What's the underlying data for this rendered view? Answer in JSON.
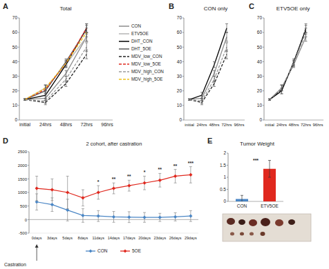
{
  "chart_data": [
    {
      "type": "line",
      "panel": "A",
      "title": "Total",
      "categories": [
        "initial",
        "24hrs",
        "48hrs",
        "72hrs",
        "96hrs"
      ],
      "ylim": [
        0,
        70
      ],
      "yticks": [
        0,
        10,
        20,
        30,
        40,
        50,
        60,
        70
      ],
      "grid": false,
      "legend": "right",
      "series": [
        {
          "name": "CON",
          "color": "#8c8c8c",
          "line_style": "solid",
          "values": [
            14,
            15,
            32,
            57,
            null
          ],
          "errors": [
            0.5,
            1.5,
            2,
            3,
            null
          ]
        },
        {
          "name": "ETV5OE",
          "color": "#b4b4b4",
          "line_style": "solid",
          "values": [
            14,
            22,
            38,
            57,
            null
          ],
          "errors": [
            0.5,
            2,
            2,
            3,
            null
          ]
        },
        {
          "name": "DHT_CON",
          "color": "#000000",
          "line_style": "solid",
          "values": [
            14,
            17,
            38,
            63,
            null
          ],
          "errors": [
            0.5,
            2,
            2,
            3,
            null
          ]
        },
        {
          "name": "DHT_5OE",
          "color": "#5a5a5a",
          "line_style": "solid",
          "values": [
            14,
            20,
            40,
            62,
            null
          ],
          "errors": [
            0.5,
            2,
            2,
            3,
            null
          ]
        },
        {
          "name": "MDV_low_CON",
          "color": "#222222",
          "line_style": "dashed",
          "values": [
            14,
            12,
            25,
            45,
            null
          ],
          "errors": [
            0.5,
            1.5,
            2,
            3,
            null
          ]
        },
        {
          "name": "MDV_low_5OE",
          "color": "#e0281e",
          "line_style": "dashed",
          "values": [
            14,
            21,
            39,
            63,
            null
          ],
          "errors": [
            0.5,
            3,
            2,
            3,
            null
          ]
        },
        {
          "name": "MDV_high_CON",
          "color": "#9a9a9a",
          "line_style": "dashed",
          "values": [
            14,
            13,
            28,
            50,
            null
          ],
          "errors": [
            0.5,
            1.5,
            2,
            3,
            null
          ]
        },
        {
          "name": "MDV_high_5OE",
          "color": "#f0c419",
          "line_style": "dashed",
          "values": [
            14,
            22,
            39,
            60,
            null
          ],
          "errors": [
            0.5,
            2,
            2,
            3,
            null
          ]
        }
      ]
    },
    {
      "type": "line",
      "panel": "B",
      "title": "CON only",
      "categories": [
        "initial",
        "24hrs",
        "48hrs",
        "72hrs",
        "96hrs"
      ],
      "ylim": [
        0,
        70
      ],
      "yticks": [
        0,
        10,
        20,
        30,
        40,
        50,
        60,
        70
      ],
      "grid": false,
      "series": [
        {
          "color": "#8c8c8c",
          "line_style": "solid",
          "values": [
            14,
            15,
            32,
            57,
            null
          ],
          "errors": [
            0.5,
            1.5,
            2,
            3,
            null
          ]
        },
        {
          "color": "#000000",
          "line_style": "solid",
          "values": [
            14,
            17,
            38,
            63,
            null
          ],
          "errors": [
            0.5,
            2,
            2,
            3,
            null
          ]
        },
        {
          "color": "#222222",
          "line_style": "dashed",
          "values": [
            14,
            12,
            25,
            45,
            null
          ],
          "errors": [
            0.5,
            1.5,
            2,
            3,
            null
          ]
        },
        {
          "color": "#9a9a9a",
          "line_style": "dashed",
          "values": [
            14,
            13,
            28,
            50,
            null
          ],
          "errors": [
            0.5,
            1.5,
            2,
            3,
            null
          ]
        }
      ]
    },
    {
      "type": "line",
      "panel": "C",
      "title": "ETV5OE only",
      "categories": [
        "initial",
        "24hrs",
        "48hrs",
        "72hrs",
        "96hrs"
      ],
      "ylim": [
        0,
        70
      ],
      "yticks": [
        0,
        10,
        20,
        30,
        40,
        50,
        60,
        70
      ],
      "grid": false,
      "series": [
        {
          "color": "#8c8c8c",
          "line_style": "solid",
          "values": [
            14,
            22,
            38,
            57,
            null
          ],
          "errors": [
            0.5,
            2,
            2,
            3,
            null
          ]
        },
        {
          "color": "#000000",
          "line_style": "solid",
          "values": [
            14,
            20,
            40,
            62,
            null
          ],
          "errors": [
            0.5,
            2,
            2,
            3,
            null
          ]
        },
        {
          "color": "#333333",
          "line_style": "dashed",
          "values": [
            14,
            21,
            39,
            63,
            null
          ],
          "errors": [
            0.5,
            3,
            2,
            3,
            null
          ]
        },
        {
          "color": "#9a9a9a",
          "line_style": "dashed",
          "values": [
            14,
            22,
            39,
            60,
            null
          ],
          "errors": [
            0.5,
            2,
            2,
            3,
            null
          ]
        }
      ]
    },
    {
      "type": "line",
      "panel": "D",
      "title": "2 cohort, after castration",
      "xlabel": "Castration",
      "categories": [
        "0days",
        "3days",
        "5days",
        "8days",
        "11days",
        "14days",
        "17days",
        "20days",
        "23days",
        "26days",
        "29days"
      ],
      "ylim": [
        -500,
        2500
      ],
      "yticks": [
        -500,
        0,
        500,
        1000,
        1500,
        2000,
        2500
      ],
      "grid": false,
      "legend": "bottom",
      "series": [
        {
          "name": "CON",
          "color": "#4a86c5",
          "marker": "diamond",
          "line_style": "solid",
          "values": [
            650,
            550,
            350,
            150,
            130,
            100,
            90,
            80,
            80,
            100,
            130
          ],
          "errors": [
            300,
            250,
            400,
            250,
            200,
            200,
            200,
            180,
            150,
            150,
            200
          ]
        },
        {
          "name": "5OE",
          "color": "#e0281e",
          "marker": "diamond",
          "line_style": "solid",
          "values": [
            1150,
            1100,
            1000,
            800,
            1000,
            1150,
            1250,
            1350,
            1450,
            1600,
            1650
          ],
          "errors": [
            450,
            400,
            600,
            300,
            250,
            200,
            200,
            250,
            250,
            250,
            300
          ]
        }
      ],
      "annotations": [
        {
          "x": "11days",
          "text": "*"
        },
        {
          "x": "14days",
          "text": "**"
        },
        {
          "x": "17days",
          "text": "**"
        },
        {
          "x": "20days",
          "text": "*"
        },
        {
          "x": "23days",
          "text": "**"
        },
        {
          "x": "26days",
          "text": "**"
        },
        {
          "x": "29days",
          "text": "***"
        }
      ]
    },
    {
      "type": "bar",
      "panel": "E",
      "title": "Tumor Weight",
      "categories": [
        "CON",
        "ETV5OE"
      ],
      "values": [
        0.1,
        1.35
      ],
      "errors": [
        0.15,
        0.35
      ],
      "colors": [
        "#4a86c5",
        "#e0281e"
      ],
      "ylim": [
        0,
        2
      ],
      "yticks": [
        0,
        0.5,
        1,
        1.5,
        2
      ],
      "grid": false,
      "annotations": [
        {
          "text": "***"
        }
      ]
    }
  ]
}
